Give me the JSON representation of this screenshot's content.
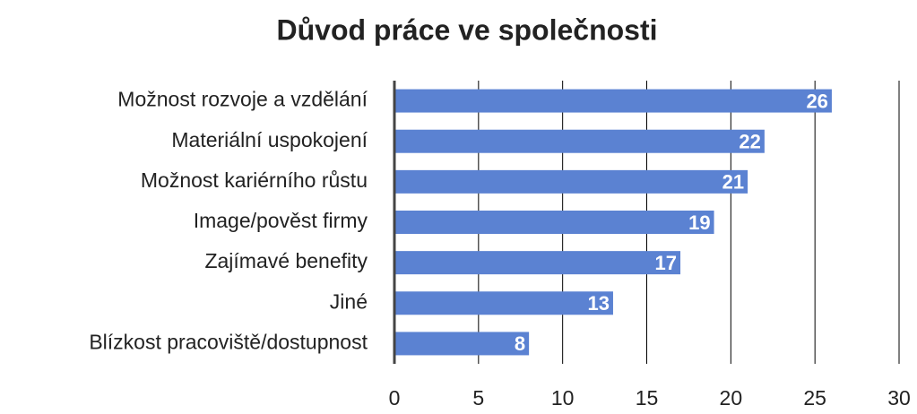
{
  "chart_data": {
    "type": "bar",
    "orientation": "horizontal",
    "title": "Důvod práce ve společnosti",
    "categories": [
      "Možnost rozvoje a vzdělání",
      "Materiální uspokojení",
      "Možnost kariérního růstu",
      "Image/pověst firmy",
      "Zajímavé benefity",
      "Jiné",
      "Blízkost pracoviště/dostupnost"
    ],
    "values": [
      26,
      22,
      21,
      19,
      17,
      13,
      8
    ],
    "color": "#5b82d2",
    "xlim": [
      0,
      30
    ],
    "xticks": [
      0,
      5,
      10,
      15,
      20,
      25,
      30
    ],
    "grid": true
  }
}
